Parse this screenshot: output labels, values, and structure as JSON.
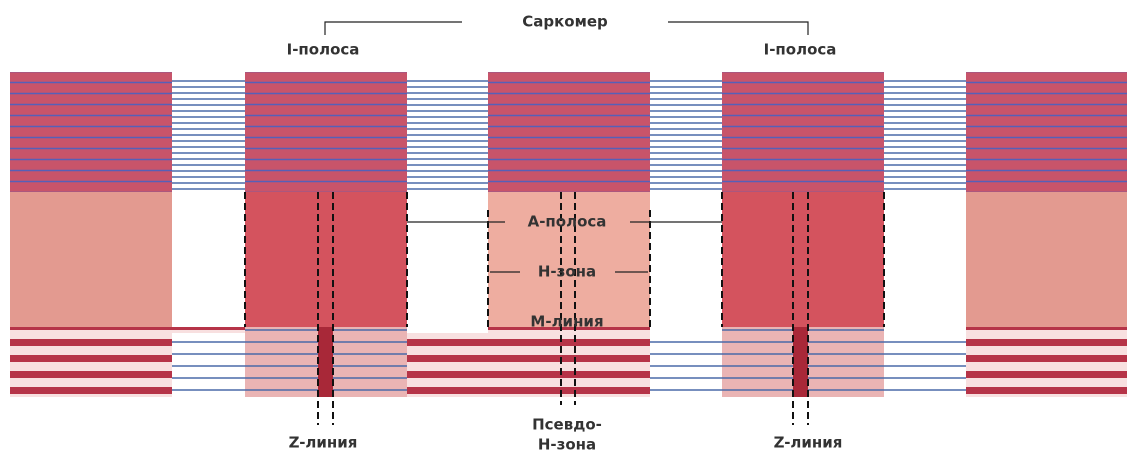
{
  "title": "Саркомер",
  "labels": {
    "i_band_left": "I-полоса",
    "i_band_right": "I-полоса",
    "a_band": "А-полоса",
    "h_zone": "Н-зона",
    "m_line": "М-линия",
    "z_line_left": "Z-линия",
    "z_line_right": "Z-линия",
    "pseudo_h_zone": [
      "Псевдо-",
      "Н-зона"
    ]
  }
}
